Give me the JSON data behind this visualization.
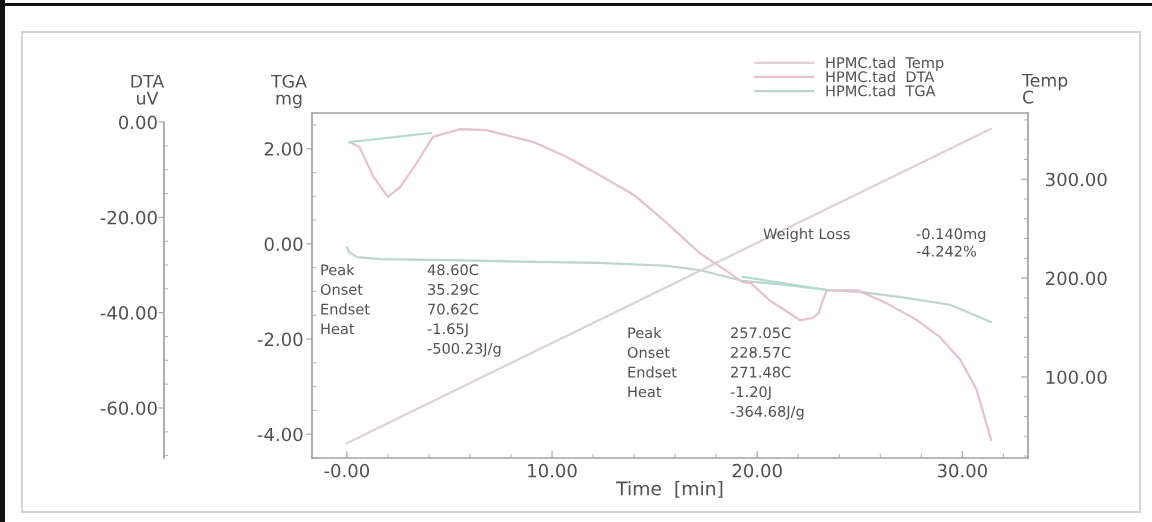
{
  "chart_data": {
    "type": "line",
    "xlabel": "Time  [min]",
    "ylabel": "TGA\nmg",
    "y2label": "Temp\nC",
    "y3label": "DTA\nuV",
    "xlim": [
      -1.7,
      33.2
    ],
    "xticks": [
      {
        "value": 0,
        "label": "-0.00"
      },
      {
        "value": 10,
        "label": "10.00"
      },
      {
        "value": 20,
        "label": "20.00"
      },
      {
        "value": 30,
        "label": "30.00"
      }
    ],
    "ylim": [
      -4.5,
      2.75
    ],
    "yticks": [
      {
        "value": -4,
        "label": "-4.00"
      },
      {
        "value": -2,
        "label": "-2.00"
      },
      {
        "value": 0,
        "label": "0.00"
      },
      {
        "value": 2,
        "label": "2.00"
      }
    ],
    "y2lim": [
      18,
      367
    ],
    "y2ticks": [
      {
        "value": 100,
        "label": "100.00"
      },
      {
        "value": 200,
        "label": "200.00"
      },
      {
        "value": 300,
        "label": "300.00"
      }
    ],
    "y3lim": [
      -70.5,
      1.9
    ],
    "y3ticks": [
      {
        "value": -60,
        "label": "-60.00"
      },
      {
        "value": -40,
        "label": "-40.00"
      },
      {
        "value": -20,
        "label": "-20.00"
      },
      {
        "value": 0,
        "label": "0.00"
      }
    ],
    "legend": "top right",
    "series": [
      {
        "name": "HPMC.tad  Temp",
        "color": "#dcd1d8",
        "axis": "y2",
        "x": [
          0,
          15,
          31.4
        ],
        "values": [
          33,
          185,
          351
        ]
      },
      {
        "name": "HPMC.tad  DTA",
        "color": "#e6c2c9",
        "axis": "y3",
        "x": [
          0.1,
          0.6,
          1.3,
          2.0,
          2.6,
          3.4,
          4.2,
          5.5,
          6.8,
          9.1,
          10.7,
          12.3,
          14.0,
          15.6,
          17.2,
          18.2,
          19.3,
          19.7,
          20.6,
          22.1,
          22.7,
          23.0,
          23.2,
          23.4,
          24.9,
          26.3,
          27.8,
          28.9,
          29.9,
          30.7,
          31.4
        ],
        "values": [
          -4.2,
          -5.2,
          -11.5,
          -15.7,
          -13.6,
          -8.6,
          -3.1,
          -1.5,
          -1.7,
          -4.2,
          -7.3,
          -11.1,
          -15.3,
          -21.2,
          -27.5,
          -30.4,
          -33.6,
          -33.8,
          -37.4,
          -41.6,
          -41.1,
          -40.1,
          -37.4,
          -35.3,
          -35.3,
          -38.0,
          -41.6,
          -45.1,
          -49.9,
          -56.2,
          -66.7
        ]
      },
      {
        "name": "HPMC.tad  TGA",
        "color": "#bfd4d0",
        "axis": "y",
        "x": [
          0,
          0.1,
          0.5,
          1.6,
          5.0,
          9.1,
          12.3,
          15.6,
          17.2,
          19.3,
          21.4,
          23.4,
          25.0,
          27.0,
          29.4,
          31.4
        ],
        "values": [
          -0.07,
          -0.17,
          -0.28,
          -0.32,
          -0.34,
          -0.38,
          -0.4,
          -0.46,
          -0.55,
          -0.78,
          -0.86,
          -0.97,
          -1.01,
          -1.12,
          -1.28,
          -1.64
        ]
      },
      {
        "color": "#b0dcd2",
        "axis": "y3",
        "x": [
          0.1,
          4.1
        ],
        "values": [
          -4.2,
          -2.3
        ]
      },
      {
        "color": "#b0dcd2",
        "axis": "y3",
        "x": [
          19.3,
          23.5
        ],
        "values": [
          -32.5,
          -35.3
        ]
      }
    ],
    "annotations": [
      "Peak\nOnset\nEndset\nHeat",
      "48.60C\n35.29C\n70.62C\n-1.65J\n-500.23J/g",
      "Peak\nOnset\nEndset\nHeat",
      "257.05C\n228.57C\n271.48C\n-1.20J\n-364.68J/g",
      "Weight Loss",
      "-0.140mg\n-4.242%"
    ]
  }
}
